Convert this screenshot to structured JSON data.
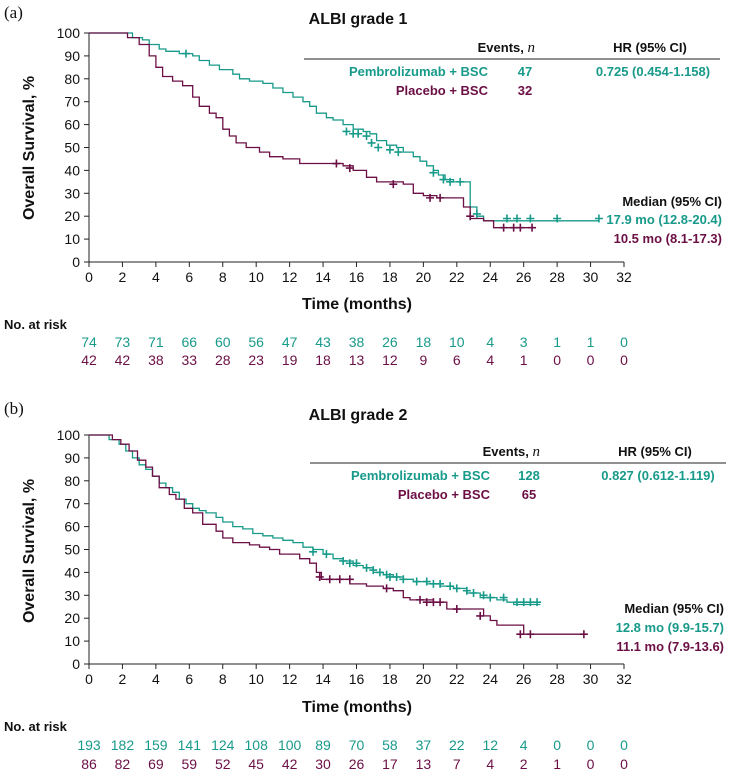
{
  "colors": {
    "pembro": "#189a8a",
    "placebo": "#6b0f45",
    "axis": "#222222",
    "dark": "#111111"
  },
  "chart_data": [
    {
      "type": "line",
      "panel": "(a)",
      "title": "ALBI grade 1",
      "xlabel": "Time (months)",
      "ylabel": "Overall Survival, %",
      "xlim": [
        0,
        32
      ],
      "ylim": [
        0,
        100
      ],
      "xticks": [
        "0",
        "2",
        "4",
        "6",
        "8",
        "10",
        "12",
        "14",
        "16",
        "18",
        "20",
        "22",
        "24",
        "26",
        "28",
        "30",
        "32"
      ],
      "yticks": [
        "0",
        "10",
        "20",
        "30",
        "40",
        "50",
        "60",
        "70",
        "80",
        "90",
        "100"
      ],
      "legend": {
        "events_header": "Events, ",
        "n_symbol": "n",
        "hr_header": "HR (95% CI)",
        "pembro_label": "Pembrolizumab + BSC",
        "pembro_events": "47",
        "hr": "0.725 (0.454-1.158)",
        "placebo_label": "Placebo + BSC",
        "placebo_events": "32"
      },
      "median": {
        "header": "Median (95% CI)",
        "pembro": "17.9 mo (12.8-20.4)",
        "placebo": "10.5 mo (8.1-17.3)"
      },
      "risk": {
        "label": "No. at risk",
        "pembro": [
          "74",
          "73",
          "71",
          "66",
          "60",
          "56",
          "47",
          "43",
          "38",
          "26",
          "18",
          "10",
          "4",
          "3",
          "1",
          "1",
          "0"
        ],
        "placebo": [
          "42",
          "42",
          "38",
          "33",
          "28",
          "23",
          "19",
          "18",
          "13",
          "12",
          "9",
          "6",
          "4",
          "1",
          "0",
          "0",
          "0"
        ]
      },
      "series": [
        {
          "name": "Pembrolizumab + BSC",
          "points": [
            [
              0,
              100
            ],
            [
              2,
              100
            ],
            [
              2.6,
              98
            ],
            [
              3.2,
              97
            ],
            [
              3.6,
              95
            ],
            [
              4.2,
              93
            ],
            [
              4.6,
              92
            ],
            [
              5.4,
              91
            ],
            [
              6.2,
              90
            ],
            [
              6.6,
              88
            ],
            [
              7.2,
              86
            ],
            [
              7.8,
              84
            ],
            [
              8.6,
              82
            ],
            [
              9,
              80
            ],
            [
              9.6,
              79
            ],
            [
              10.4,
              78
            ],
            [
              11,
              76
            ],
            [
              11.6,
              74
            ],
            [
              12.2,
              72
            ],
            [
              12.8,
              70
            ],
            [
              13.2,
              68
            ],
            [
              13.6,
              65
            ],
            [
              14.2,
              63
            ],
            [
              14.6,
              62
            ],
            [
              15.2,
              60
            ],
            [
              15.8,
              58
            ],
            [
              16.4,
              57
            ],
            [
              16.8,
              56
            ],
            [
              17.2,
              53
            ],
            [
              17.8,
              51
            ],
            [
              18.4,
              50
            ],
            [
              18.8,
              48
            ],
            [
              19.4,
              46
            ],
            [
              19.8,
              44
            ],
            [
              20.2,
              42
            ],
            [
              20.6,
              40
            ],
            [
              20.9,
              38
            ],
            [
              21.3,
              36
            ],
            [
              21.8,
              35
            ],
            [
              22.4,
              35
            ],
            [
              22.8,
              24
            ],
            [
              23.2,
              20
            ],
            [
              23.6,
              18
            ],
            [
              30.5,
              18
            ]
          ],
          "censors": [
            [
              5.8,
              91
            ],
            [
              15.4,
              57
            ],
            [
              15.8,
              56
            ],
            [
              16.1,
              56
            ],
            [
              16.6,
              55
            ],
            [
              16.9,
              52
            ],
            [
              17.3,
              50
            ],
            [
              18.0,
              49
            ],
            [
              18.5,
              48
            ],
            [
              20.6,
              39
            ],
            [
              21.2,
              36
            ],
            [
              21.6,
              35
            ],
            [
              22.2,
              35
            ],
            [
              23.2,
              21
            ],
            [
              25.0,
              19
            ],
            [
              25.6,
              19
            ],
            [
              26.4,
              19
            ],
            [
              28.0,
              19
            ],
            [
              30.5,
              19
            ]
          ]
        },
        {
          "name": "Placebo + BSC",
          "points": [
            [
              0,
              100
            ],
            [
              2,
              100
            ],
            [
              2.3,
              98
            ],
            [
              3,
              95
            ],
            [
              3.6,
              90
            ],
            [
              4,
              85
            ],
            [
              4.4,
              81
            ],
            [
              5,
              79
            ],
            [
              5.6,
              77
            ],
            [
              6.2,
              72
            ],
            [
              6.6,
              68
            ],
            [
              7.2,
              65
            ],
            [
              7.6,
              63
            ],
            [
              8,
              58
            ],
            [
              8.4,
              55
            ],
            [
              8.8,
              52
            ],
            [
              9.4,
              50
            ],
            [
              10.2,
              48
            ],
            [
              10.8,
              46
            ],
            [
              11.6,
              45
            ],
            [
              12.6,
              43
            ],
            [
              14.6,
              43
            ],
            [
              15.2,
              42
            ],
            [
              15.8,
              40
            ],
            [
              16.6,
              37
            ],
            [
              17.2,
              35
            ],
            [
              18.8,
              34
            ],
            [
              19.4,
              30
            ],
            [
              20,
              29
            ],
            [
              20.8,
              28
            ],
            [
              22.4,
              24
            ],
            [
              22.8,
              19
            ],
            [
              23.6,
              18
            ],
            [
              24.2,
              15
            ],
            [
              26.5,
              15
            ]
          ],
          "censors": [
            [
              14.8,
              43
            ],
            [
              15.6,
              41
            ],
            [
              18.2,
              34
            ],
            [
              20.4,
              28
            ],
            [
              21.0,
              28
            ],
            [
              22.8,
              20
            ],
            [
              24.8,
              15
            ],
            [
              25.4,
              15
            ],
            [
              25.8,
              15
            ],
            [
              26.5,
              15
            ]
          ]
        }
      ]
    },
    {
      "type": "line",
      "panel": "(b)",
      "title": "ALBI grade 2",
      "xlabel": "Time (months)",
      "ylabel": "Overall Survival, %",
      "xlim": [
        0,
        32
      ],
      "ylim": [
        0,
        100
      ],
      "xticks": [
        "0",
        "2",
        "4",
        "6",
        "8",
        "10",
        "12",
        "14",
        "16",
        "18",
        "20",
        "22",
        "24",
        "26",
        "28",
        "30",
        "32"
      ],
      "yticks": [
        "0",
        "10",
        "20",
        "30",
        "40",
        "50",
        "60",
        "70",
        "80",
        "90",
        "100"
      ],
      "legend": {
        "events_header": "Events, ",
        "n_symbol": "n",
        "hr_header": "HR (95% CI)",
        "pembro_label": "Pembrolizumab + BSC",
        "pembro_events": "128",
        "hr": "0.827 (0.612-1.119)",
        "placebo_label": "Placebo + BSC",
        "placebo_events": "65"
      },
      "median": {
        "header": "Median (95% CI)",
        "pembro": "12.8 mo (9.9-15.7)",
        "placebo": "11.1 mo (7.9-13.6)"
      },
      "risk": {
        "label": "No. at risk",
        "pembro": [
          "193",
          "182",
          "159",
          "141",
          "124",
          "108",
          "100",
          "89",
          "70",
          "58",
          "37",
          "22",
          "12",
          "4",
          "0",
          "0",
          "0"
        ],
        "placebo": [
          "86",
          "82",
          "69",
          "59",
          "52",
          "45",
          "42",
          "30",
          "26",
          "17",
          "13",
          "7",
          "4",
          "2",
          "1",
          "0",
          "0"
        ]
      },
      "series": [
        {
          "name": "Pembrolizumab + BSC",
          "points": [
            [
              0,
              100
            ],
            [
              0.8,
              100
            ],
            [
              1.2,
              98
            ],
            [
              1.8,
              96
            ],
            [
              2.2,
              93
            ],
            [
              2.6,
              90
            ],
            [
              3,
              87
            ],
            [
              3.4,
              85
            ],
            [
              3.8,
              82
            ],
            [
              4.2,
              79
            ],
            [
              4.6,
              77
            ],
            [
              5,
              75
            ],
            [
              5.4,
              72
            ],
            [
              5.8,
              70
            ],
            [
              6.2,
              68
            ],
            [
              6.6,
              67
            ],
            [
              7,
              66
            ],
            [
              7.6,
              64
            ],
            [
              8,
              62
            ],
            [
              8.6,
              60
            ],
            [
              9.2,
              59
            ],
            [
              9.8,
              57
            ],
            [
              10.4,
              56
            ],
            [
              11,
              55
            ],
            [
              11.6,
              54
            ],
            [
              12.2,
              53
            ],
            [
              12.8,
              51
            ],
            [
              13.4,
              50
            ],
            [
              14,
              48
            ],
            [
              14.6,
              46
            ],
            [
              15.2,
              45
            ],
            [
              15.8,
              43
            ],
            [
              16.4,
              42
            ],
            [
              17,
              40
            ],
            [
              17.6,
              39
            ],
            [
              18.2,
              38
            ],
            [
              18.8,
              37
            ],
            [
              19.4,
              36
            ],
            [
              20.2,
              35
            ],
            [
              21,
              34
            ],
            [
              21.8,
              33
            ],
            [
              22.6,
              31
            ],
            [
              23.4,
              29
            ],
            [
              24.4,
              28
            ],
            [
              25,
              27
            ],
            [
              25.4,
              26
            ],
            [
              27,
              26
            ]
          ],
          "censors": [
            [
              13.4,
              49
            ],
            [
              14.2,
              48
            ],
            [
              15.2,
              45
            ],
            [
              15.6,
              44
            ],
            [
              16.0,
              44
            ],
            [
              16.6,
              42
            ],
            [
              17.0,
              41
            ],
            [
              17.4,
              40
            ],
            [
              17.8,
              39
            ],
            [
              18.0,
              38
            ],
            [
              18.4,
              38
            ],
            [
              18.8,
              37
            ],
            [
              19.6,
              36
            ],
            [
              20.2,
              36
            ],
            [
              20.6,
              35
            ],
            [
              21.0,
              35
            ],
            [
              21.6,
              34
            ],
            [
              22.0,
              33
            ],
            [
              22.6,
              32
            ],
            [
              23.0,
              31
            ],
            [
              23.6,
              30
            ],
            [
              24.0,
              29
            ],
            [
              24.8,
              29
            ],
            [
              25.6,
              27
            ],
            [
              26.0,
              27
            ],
            [
              26.4,
              27
            ],
            [
              26.8,
              27
            ]
          ]
        },
        {
          "name": "Placebo + BSC",
          "points": [
            [
              0,
              100
            ],
            [
              1,
              100
            ],
            [
              1.4,
              98
            ],
            [
              1.9,
              96
            ],
            [
              2.4,
              93
            ],
            [
              2.9,
              89
            ],
            [
              3.4,
              86
            ],
            [
              3.8,
              82
            ],
            [
              4.2,
              77
            ],
            [
              4.8,
              74
            ],
            [
              5.2,
              72
            ],
            [
              5.7,
              68
            ],
            [
              6.2,
              66
            ],
            [
              6.8,
              61
            ],
            [
              7.6,
              58
            ],
            [
              8,
              55
            ],
            [
              8.6,
              53
            ],
            [
              9.6,
              52
            ],
            [
              10.2,
              51
            ],
            [
              10.8,
              50
            ],
            [
              11.4,
              48
            ],
            [
              12.6,
              46
            ],
            [
              13.2,
              44
            ],
            [
              13.6,
              40
            ],
            [
              13.9,
              37
            ],
            [
              14.8,
              37
            ],
            [
              15.6,
              35
            ],
            [
              16.6,
              34
            ],
            [
              17.6,
              33
            ],
            [
              18.2,
              32
            ],
            [
              18.8,
              29
            ],
            [
              19.2,
              28
            ],
            [
              20.6,
              27
            ],
            [
              21.4,
              24
            ],
            [
              22.6,
              24
            ],
            [
              23.6,
              21
            ],
            [
              24,
              19
            ],
            [
              24.4,
              17
            ],
            [
              25.8,
              17
            ],
            [
              26,
              13
            ],
            [
              29.7,
              13
            ]
          ],
          "censors": [
            [
              13.8,
              38
            ],
            [
              14.4,
              37
            ],
            [
              15.0,
              37
            ],
            [
              15.6,
              37
            ],
            [
              17.8,
              33
            ],
            [
              19.8,
              28
            ],
            [
              20.2,
              27
            ],
            [
              20.6,
              27
            ],
            [
              21.0,
              27
            ],
            [
              22.0,
              24
            ],
            [
              23.4,
              21
            ],
            [
              25.8,
              13
            ],
            [
              26.4,
              13
            ],
            [
              29.6,
              13
            ]
          ]
        }
      ]
    }
  ]
}
